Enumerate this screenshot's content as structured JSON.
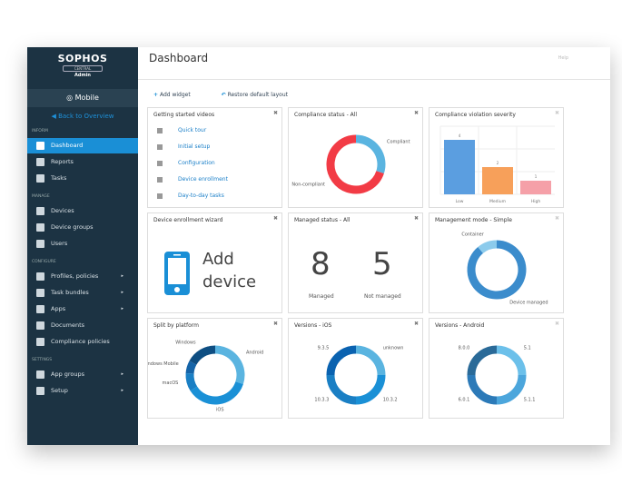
{
  "brand": {
    "name": "SOPHOS",
    "sub": "CENTRAL",
    "role": "Admin"
  },
  "product": "Mobile",
  "back": "Back to Overview",
  "sidebar": {
    "sections": [
      {
        "label": "INFORM",
        "items": [
          {
            "label": "Dashboard",
            "active": true
          },
          {
            "label": "Reports"
          },
          {
            "label": "Tasks"
          }
        ]
      },
      {
        "label": "MANAGE",
        "items": [
          {
            "label": "Devices"
          },
          {
            "label": "Device groups"
          },
          {
            "label": "Users"
          }
        ]
      },
      {
        "label": "CONFIGURE",
        "items": [
          {
            "label": "Profiles, policies",
            "arrow": true
          },
          {
            "label": "Task bundles",
            "arrow": true
          },
          {
            "label": "Apps",
            "arrow": true
          },
          {
            "label": "Documents"
          },
          {
            "label": "Compliance policies"
          }
        ]
      },
      {
        "label": "SETTINGS",
        "items": [
          {
            "label": "App groups",
            "arrow": true
          },
          {
            "label": "Setup",
            "arrow": true
          }
        ]
      }
    ]
  },
  "header": {
    "title": "Dashboard",
    "help": "Help"
  },
  "toolbar": {
    "add": "Add widget",
    "restore": "Restore default layout"
  },
  "widgets": {
    "videos": {
      "title": "Getting started videos",
      "items": [
        "Quick tour",
        "Initial setup",
        "Configuration",
        "Device enrollment",
        "Day-to-day tasks"
      ]
    },
    "compliance": {
      "title": "Compliance status - All"
    },
    "severity": {
      "title": "Compliance violation severity"
    },
    "wizard": {
      "title": "Device enrollment wizard",
      "text1": "Add",
      "text2": "device"
    },
    "managed": {
      "title": "Managed status - All",
      "managed": "8",
      "managed_label": "Managed",
      "not": "5",
      "not_label": "Not managed"
    },
    "mode": {
      "title": "Management mode - Simple"
    },
    "platform": {
      "title": "Split by platform"
    },
    "ios": {
      "title": "Versions - iOS"
    },
    "android": {
      "title": "Versions - Android"
    }
  },
  "chart_data": [
    {
      "id": "compliance",
      "type": "pie",
      "slices": [
        {
          "label": "Compliant",
          "value": 30,
          "color": "#5ab4e0"
        },
        {
          "label": "Non-compliant",
          "value": 70,
          "color": "#f23b45"
        }
      ]
    },
    {
      "id": "severity",
      "type": "bar",
      "categories": [
        "Low",
        "Medium",
        "High"
      ],
      "values": [
        4,
        2,
        1
      ],
      "colors": [
        "#5b9ee0",
        "#f7a05a",
        "#f5a0a8"
      ],
      "ylim": [
        0,
        5
      ]
    },
    {
      "id": "mode",
      "type": "pie",
      "slices": [
        {
          "label": "Device managed",
          "value": 89,
          "color": "#3b8ccc"
        },
        {
          "label": "Container",
          "value": 11,
          "color": "#8ccbec"
        }
      ]
    },
    {
      "id": "platform",
      "type": "pie",
      "slices": [
        {
          "label": "Android",
          "value": 30,
          "color": "#5ab4e0"
        },
        {
          "label": "iOS",
          "value": 36,
          "color": "#1a90d6"
        },
        {
          "label": "macOS",
          "value": 10,
          "color": "#1a7fc4"
        },
        {
          "label": "Windows Mobile",
          "value": 7,
          "color": "#1564a8"
        },
        {
          "label": "Windows",
          "value": 17,
          "color": "#0e4e82"
        }
      ]
    },
    {
      "id": "ios",
      "type": "pie",
      "slices": [
        {
          "label": "unknown",
          "value": 25,
          "color": "#5ab4e0"
        },
        {
          "label": "10.3.2",
          "value": 25,
          "color": "#1a90d6"
        },
        {
          "label": "10.3.3",
          "value": 25,
          "color": "#1a7fc4"
        },
        {
          "label": "9.3.5",
          "value": 25,
          "color": "#0a62b0"
        }
      ]
    },
    {
      "id": "android",
      "type": "pie",
      "slices": [
        {
          "label": "5.1",
          "value": 25,
          "color": "#6cc0ea"
        },
        {
          "label": "5.1.1",
          "value": 25,
          "color": "#4ca6dc"
        },
        {
          "label": "6.0.1",
          "value": 25,
          "color": "#2c7ab8"
        },
        {
          "label": "8.0.0",
          "value": 25,
          "color": "#2a6a98"
        }
      ]
    }
  ]
}
